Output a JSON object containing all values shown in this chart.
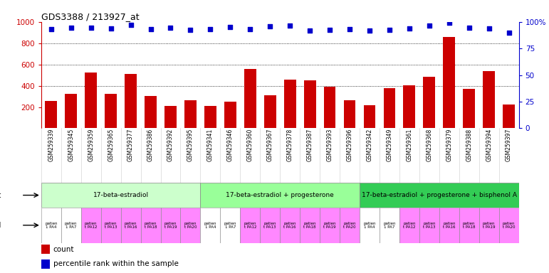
{
  "title": "GDS3388 / 213927_at",
  "gsm_labels": [
    "GSM259339",
    "GSM259345",
    "GSM259359",
    "GSM259365",
    "GSM259377",
    "GSM259386",
    "GSM259392",
    "GSM259395",
    "GSM259341",
    "GSM259346",
    "GSM259360",
    "GSM259367",
    "GSM259378",
    "GSM259387",
    "GSM259393",
    "GSM259396",
    "GSM259342",
    "GSM259349",
    "GSM259361",
    "GSM259368",
    "GSM259379",
    "GSM259388",
    "GSM259394",
    "GSM259397"
  ],
  "bar_values": [
    255,
    325,
    527,
    325,
    510,
    303,
    210,
    265,
    212,
    253,
    560,
    313,
    457,
    453,
    392,
    263,
    220,
    380,
    407,
    487,
    855,
    370,
    535,
    225
  ],
  "percentile_values": [
    930,
    942,
    947,
    940,
    970,
    930,
    942,
    925,
    932,
    953,
    930,
    958,
    967,
    920,
    925,
    930,
    920,
    925,
    940,
    967,
    990,
    942,
    935,
    900
  ],
  "bar_color": "#cc0000",
  "dot_color": "#0000cc",
  "agent_groups": [
    {
      "label": "17-beta-estradiol",
      "start": 0,
      "end": 8,
      "color": "#ccffcc"
    },
    {
      "label": "17-beta-estradiol + progesterone",
      "start": 8,
      "end": 16,
      "color": "#99ff99"
    },
    {
      "label": "17-beta-estradiol + progesterone + bisphenol A",
      "start": 16,
      "end": 24,
      "color": "#33cc55"
    }
  ],
  "individual_labels": [
    "patien\nt\n1 PA4",
    "patien\nt\n1 PA7",
    "patien\nt\nt PA12",
    "patien\nt\nt PA13",
    "patien\nt\nt PA16",
    "patien\nt\nt PA18",
    "patien\nt\nt PA19",
    "patien\nt\nt PA20",
    "patien\nt\n1 PA4",
    "patien\nt\n1 PA7",
    "patien\nt\nt PA12",
    "patien\nt\nt PA13",
    "patien\nt\nt PA16",
    "patien\nt\nt PA18",
    "patien\nt\nt PA19",
    "patien\nt\nt PA20",
    "patien\nt\n1 PA4",
    "patien\nt\n1 PA7",
    "patien\nt\nt PA12",
    "patien\nt\nt PA13",
    "patien\nt\nt PA16",
    "patien\nt\nt PA18",
    "patien\nt\nt PA19",
    "patien\nt\nt PA20"
  ],
  "individual_colors": [
    "#ffffff",
    "#ffffff",
    "#ff88ff",
    "#ff88ff",
    "#ff88ff",
    "#ff88ff",
    "#ff88ff",
    "#ff88ff",
    "#ffffff",
    "#ffffff",
    "#ff88ff",
    "#ff88ff",
    "#ff88ff",
    "#ff88ff",
    "#ff88ff",
    "#ff88ff",
    "#ffffff",
    "#ffffff",
    "#ff88ff",
    "#ff88ff",
    "#ff88ff",
    "#ff88ff",
    "#ff88ff",
    "#ff88ff"
  ],
  "ylim_left": [
    0,
    1000
  ],
  "ylim_right": [
    0,
    100
  ],
  "yticks_left": [
    200,
    400,
    600,
    800,
    1000
  ],
  "yticks_right": [
    0,
    25,
    50,
    75,
    100
  ],
  "grid_values": [
    400,
    600,
    800
  ],
  "ylabel_left_color": "#cc0000",
  "ylabel_right_color": "#0000cc",
  "bar_width": 0.6,
  "figsize": [
    7.71,
    3.84
  ],
  "dpi": 100
}
